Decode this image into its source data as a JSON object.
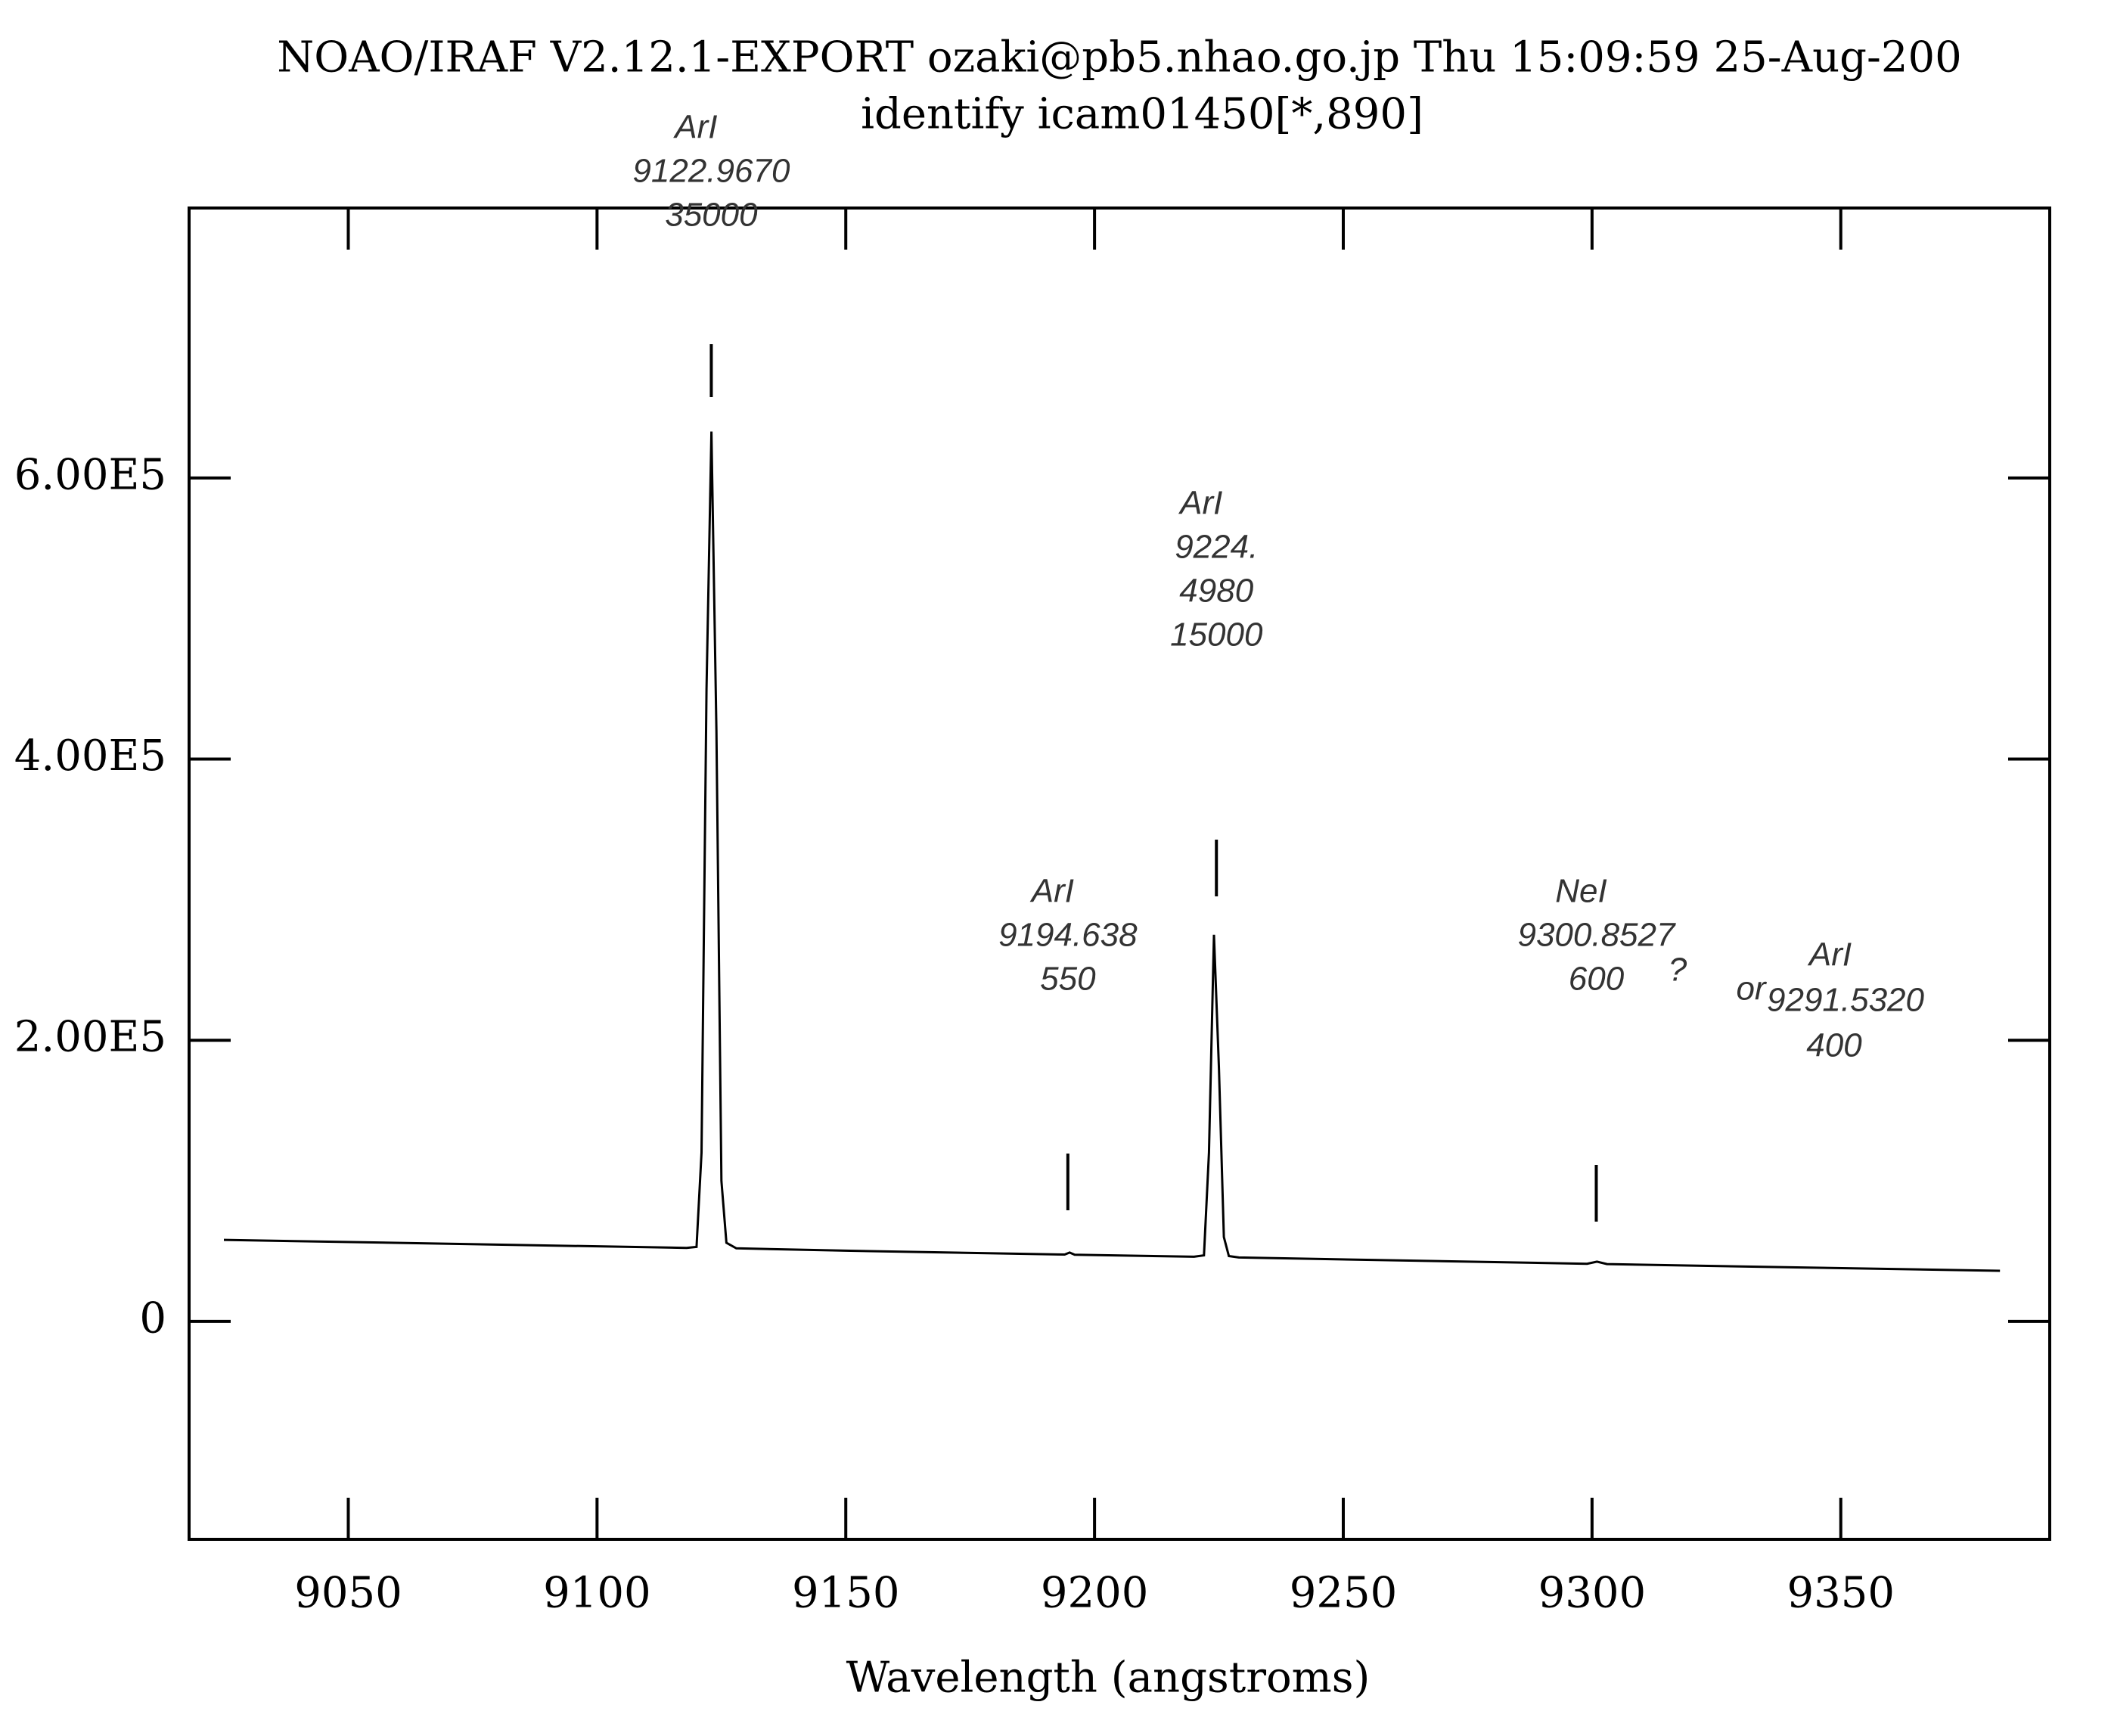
{
  "chart_data": {
    "type": "line",
    "title": "NOAO/IRAF V2.12.1-EXPORT ozaki@pb5.nhao.go.jp Thu 15:09:59 25-Aug-200",
    "subtitle": "identify icam01450[*,890]",
    "xlabel": "Wavelength (angstroms)",
    "x": [
      9025,
      9118,
      9120,
      9121,
      9122,
      9123,
      9124,
      9125,
      9126,
      9128,
      9150,
      9194,
      9195,
      9196,
      9220,
      9222,
      9223,
      9224,
      9225,
      9226,
      9227,
      9229,
      9260,
      9299,
      9301,
      9303,
      9340,
      9382
    ],
    "values": [
      58000,
      52300,
      53000,
      120000,
      450000,
      633000,
      420000,
      100000,
      56000,
      52000,
      50300,
      47600,
      49000,
      47500,
      46000,
      47000,
      120000,
      275000,
      180000,
      60000,
      46500,
      45500,
      43500,
      41000,
      42500,
      40800,
      38500,
      36000
    ],
    "color": "#000000",
    "xlim": [
      9018,
      9392
    ],
    "ylim": [
      -155000,
      792000
    ],
    "xticks": [
      9050,
      9100,
      9150,
      9200,
      9250,
      9300,
      9350
    ],
    "yticks": [
      0,
      {
        "value": 200000,
        "label": "2.00E5"
      },
      {
        "value": 400000,
        "label": "4.00E5"
      },
      {
        "value": 600000,
        "label": "6.00E5"
      }
    ],
    "features": [
      {
        "x": 9122.967,
        "text": [
          "ArI",
          "9122.9670",
          "35000"
        ]
      },
      {
        "x": 9194.638,
        "text": [
          "ArI",
          "9194.638",
          "550"
        ]
      },
      {
        "x": 9224.498,
        "text": [
          "ArI",
          "9224.",
          "4980",
          "15000"
        ]
      },
      {
        "x": 9300.8527,
        "text": [
          "NeI",
          "9300.8527",
          "600"
        ]
      }
    ],
    "annotations": [
      "?",
      "or",
      "ArI",
      "9291.5320",
      "400"
    ]
  }
}
